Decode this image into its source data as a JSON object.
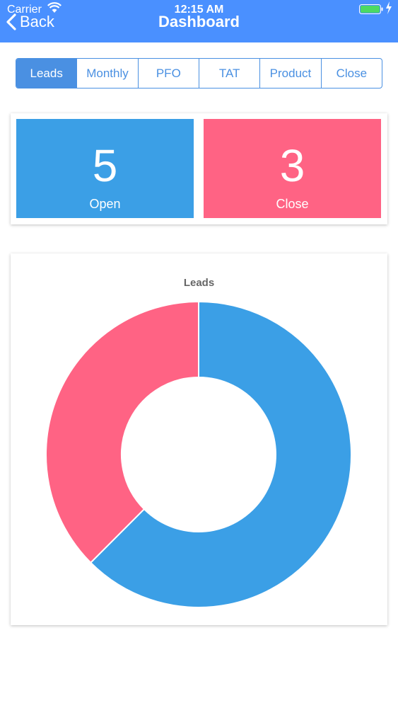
{
  "status_bar": {
    "carrier": "Carrier",
    "time": "12:15 AM"
  },
  "nav": {
    "back_label": "Back",
    "title": "Dashboard"
  },
  "tabs": [
    {
      "label": "Leads",
      "active": true
    },
    {
      "label": "Monthly",
      "active": false
    },
    {
      "label": "PFO",
      "active": false
    },
    {
      "label": "TAT",
      "active": false
    },
    {
      "label": "Product",
      "active": false
    },
    {
      "label": "Close",
      "active": false
    }
  ],
  "stats": {
    "open": {
      "value": "5",
      "label": "Open"
    },
    "close": {
      "value": "3",
      "label": "Close"
    }
  },
  "colors": {
    "header": "#4a90ff",
    "accent": "#4a90e2",
    "open": "#3b9fe6",
    "close": "#ff6384"
  },
  "chart_data": {
    "type": "pie",
    "title": "Leads",
    "categories": [
      "Open",
      "Close"
    ],
    "values": [
      5,
      3
    ],
    "colors": [
      "#3b9fe6",
      "#ff6384"
    ]
  }
}
